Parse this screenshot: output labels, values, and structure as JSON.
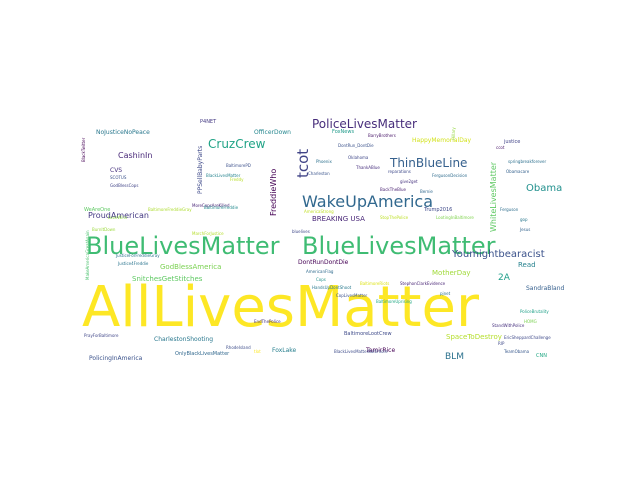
{
  "words": [
    {
      "text": "AllLivesMatter",
      "color": "#fde725"
    },
    {
      "text": "BlueLivesMatter",
      "color": "#3fbc73"
    },
    {
      "text": "BlueLivesMatter",
      "color": "#3fbc73"
    },
    {
      "text": "WakeUpAmerica",
      "color": "#31688e"
    },
    {
      "text": "PoliceLivesMatter",
      "color": "#472d7b"
    },
    {
      "text": "ThinBlueLine",
      "color": "#35608d"
    },
    {
      "text": "CruzCrew",
      "color": "#20a386"
    },
    {
      "text": "tcot",
      "color": "#414487"
    },
    {
      "text": "Youmightbearacist",
      "color": "#3b528b"
    },
    {
      "text": "FreddieWho",
      "color": "#440154"
    },
    {
      "text": "WhiteLivesMatter",
      "color": "#5ec962"
    },
    {
      "text": "Obama",
      "color": "#21908d"
    },
    {
      "text": "CashinIn",
      "color": "#482878"
    },
    {
      "text": "ProudAmerican",
      "color": "#443983"
    },
    {
      "text": "GodBlessAmerica",
      "color": "#7ad151"
    },
    {
      "text": "SnitchesGetStitches",
      "color": "#5ec962"
    },
    {
      "text": "BLM",
      "color": "#2c728e"
    },
    {
      "text": "SpaceToDestroy",
      "color": "#b5de2b"
    },
    {
      "text": "2A",
      "color": "#1f9e89"
    },
    {
      "text": "Read",
      "color": "#26828e"
    },
    {
      "text": "PPSellBabyParts",
      "color": "#3e4989"
    },
    {
      "text": "DontRunDontDie",
      "color": "#440154"
    },
    {
      "text": "BREAKING USA",
      "color": "#482677"
    },
    {
      "text": "MotherDay",
      "color": "#a0da39"
    },
    {
      "text": "SandraBland",
      "color": "#355f8d"
    },
    {
      "text": "CharlestonShooting",
      "color": "#2a788e"
    },
    {
      "text": "FoxLake",
      "color": "#277f8e"
    },
    {
      "text": "TamirRice",
      "color": "#440154"
    },
    {
      "text": "PolicingInAmerica",
      "color": "#3b528b"
    },
    {
      "text": "OnlyBlackLivesMatter",
      "color": "#31688e"
    },
    {
      "text": "BaltimoreLootCrew",
      "color": "#3e4a89"
    },
    {
      "text": "NoJusticeNoPeace",
      "color": "#2a788e"
    },
    {
      "text": "OfficerDown",
      "color": "#24868e"
    },
    {
      "text": "FoxNews",
      "color": "#1f9a8a"
    },
    {
      "text": "HappyMemorialDay",
      "color": "#d2e21b"
    },
    {
      "text": "justice",
      "color": "#414487"
    },
    {
      "text": "Trump2016",
      "color": "#3e4989"
    },
    {
      "text": "WeAreOne",
      "color": "#5ec962"
    },
    {
      "text": "CVS",
      "color": "#46327e"
    },
    {
      "text": "P4NET",
      "color": "#443a83"
    },
    {
      "text": "BackTheBlue",
      "color": "#481f70"
    },
    {
      "text": "give2get",
      "color": "#46337f"
    },
    {
      "text": "reparations",
      "color": "#3e4989"
    },
    {
      "text": "DontRun_DontDie",
      "color": "#3b528b"
    },
    {
      "text": "BarryBrothers",
      "color": "#481668"
    },
    {
      "text": "BaltimorePD",
      "color": "#3c508b"
    },
    {
      "text": "BlackLivesMatter",
      "color": "#25838e"
    },
    {
      "text": "Oklahoma",
      "color": "#3f4788"
    },
    {
      "text": "Phoenix",
      "color": "#2d708e"
    },
    {
      "text": "SCOTUS",
      "color": "#3b528b"
    },
    {
      "text": "LoveWins",
      "color": "#8fd744"
    },
    {
      "text": "StopThePolice",
      "color": "#bddf26"
    },
    {
      "text": "MoreCopsAreKilled",
      "color": "#482475"
    },
    {
      "text": "LootingInBaltimore",
      "color": "#7fd34e"
    },
    {
      "text": "BaltimoreUprising",
      "color": "#22a884"
    },
    {
      "text": "BaltimoreRiots",
      "color": "#dde318"
    },
    {
      "text": "EricSheppardChallenge",
      "color": "#3e4989"
    },
    {
      "text": "StephonClarkEvidence",
      "color": "#482475"
    },
    {
      "text": "springbreakforever",
      "color": "#2d708e"
    },
    {
      "text": "GodBlessCops",
      "color": "#414487"
    },
    {
      "text": "Freddy",
      "color": "#b8de29"
    },
    {
      "text": "HOMG",
      "color": "#7ad151"
    },
    {
      "text": "CNN",
      "color": "#22a884"
    },
    {
      "text": "Ferguson",
      "color": "#2e6e8e"
    },
    {
      "text": "RIP",
      "color": "#3e4989"
    },
    {
      "text": "TeamObama",
      "color": "#38588c"
    },
    {
      "text": "Obamacare",
      "color": "#34618d"
    },
    {
      "text": "Bernie",
      "color": "#30688e"
    },
    {
      "text": "Hillary",
      "color": "#95d840"
    },
    {
      "text": "tlot",
      "color": "#fde725"
    },
    {
      "text": "pjnet",
      "color": "#2c728e"
    },
    {
      "text": "BaltimoreFreddieGray",
      "color": "#addc30"
    },
    {
      "text": "ccot",
      "color": "#481668"
    },
    {
      "text": "BlackTwitter",
      "color": "#440154"
    },
    {
      "text": "gop",
      "color": "#2a788e"
    },
    {
      "text": "Charleston",
      "color": "#3a548c"
    },
    {
      "text": "EndThePolice",
      "color": "#46317e"
    },
    {
      "text": "RhodeIsland",
      "color": "#3d4d8a"
    },
    {
      "text": "AmericanFlag",
      "color": "#2f6b8e"
    },
    {
      "text": "Cops",
      "color": "#21918c"
    },
    {
      "text": "Jesus",
      "color": "#33638d"
    },
    {
      "text": "HandsUpDontShoot",
      "color": "#29798e"
    },
    {
      "text": "JusticeForFreddieGray",
      "color": "#2c728e"
    },
    {
      "text": "CopLivesMatter",
      "color": "#3b528b"
    },
    {
      "text": "PrayForBaltimore",
      "color": "#404688"
    },
    {
      "text": "BaltimoreFreddie",
      "color": "#238a8d"
    },
    {
      "text": "MarchForJustice",
      "color": "#b5de2b"
    },
    {
      "text": "bluelives",
      "color": "#3f4889"
    },
    {
      "text": "MakeAmericaGreatAgain",
      "color": "#4ac16d"
    },
    {
      "text": "BlackLivesMatterBaltimore",
      "color": "#3e4c8a"
    },
    {
      "text": "ThankABlue",
      "color": "#472f7d"
    },
    {
      "text": "BurnItDown",
      "color": "#9bd93c"
    },
    {
      "text": "FergusonDecision",
      "color": "#2f6c8e"
    },
    {
      "text": "AmericaStrong",
      "color": "#c0df25"
    },
    {
      "text": "PoliceBrutality",
      "color": "#1fa088"
    },
    {
      "text": "StandWithPolice",
      "color": "#46307e"
    },
    {
      "text": "Justice4Freddie",
      "color": "#2b748e"
    }
  ]
}
